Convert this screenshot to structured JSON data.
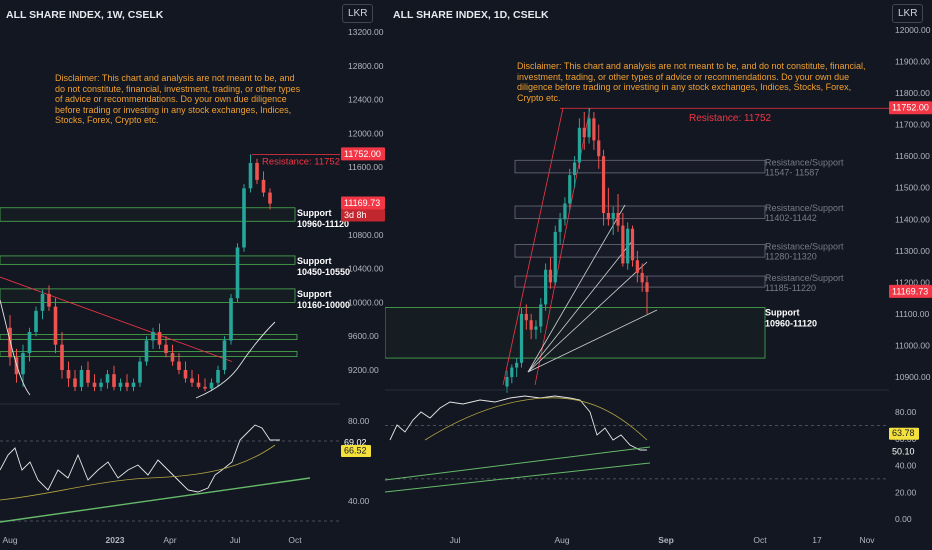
{
  "left": {
    "title": "ALL SHARE INDEX, 1W, CSELK",
    "currency": "LKR",
    "disclaimer": "Disclaimer: This chart and analysis are not meant to be, and do not constitute, financial, investment, trading, or other types of advice or recommendations. Do your own due diligence before trading or investing in any stock exchanges, Indices, Stocks, Forex, Crypto etc.",
    "resistance_label": "Resistance: 11752",
    "support_zones": [
      {
        "line1": "Support",
        "line2": "10960-11120",
        "low": 10960,
        "high": 11120
      },
      {
        "line1": "Support",
        "line2": "10450-10550",
        "low": 10450,
        "high": 10550
      },
      {
        "line1": "Support",
        "line2": "10160-10000",
        "low": 10000,
        "high": 10160
      }
    ],
    "last_price": "11169.73",
    "countdown": "3d 8h",
    "resistance_price": "11752.00",
    "rsi_values": [
      "69.02",
      "66.52"
    ],
    "colors": {
      "up": "#26a69a",
      "down": "#ef5350",
      "zone": "#4caf50",
      "resistance": "#f23645",
      "rsi": "#e6e6e6",
      "rsi_ma": "#b5a642",
      "trend": "#66bb6a"
    }
  },
  "right": {
    "title": "ALL SHARE INDEX, 1D, CSELK",
    "currency": "LKR",
    "disclaimer": "Disclaimer: This chart and analysis are not meant to be, and do not constitute, financial, investment, trading, or other types of advice or recommendations. Do your own due diligence before trading or investing in any stock exchanges, Indices, Stocks, Forex, Crypto etc.",
    "resistance_label": "Resistance: 11752",
    "zones": [
      {
        "line1": "Resistance/Support",
        "line2": "11547- 11587",
        "low": 11547,
        "high": 11587
      },
      {
        "line1": "Resistance/Support",
        "line2": "11402-11442",
        "low": 11402,
        "high": 11442
      },
      {
        "line1": "Resistance/Support",
        "line2": "11280-11320",
        "low": 11280,
        "high": 11320
      },
      {
        "line1": "Resistance/Support",
        "line2": "11185-11220",
        "low": 11185,
        "high": 11220
      }
    ],
    "support_zone": {
      "line1": "Support",
      "line2": "10960-11120",
      "low": 10960,
      "high": 11120
    },
    "resistance_price": "11752.00",
    "last_price": "11169.73",
    "rsi_values": [
      "63.78",
      "50.10"
    ]
  },
  "chart_data": [
    {
      "type": "candlestick",
      "title": "ALL SHARE INDEX, 1W, CSELK",
      "currency": "LKR",
      "ylim": [
        8950,
        13330
      ],
      "y_ticks": [
        "13200.00",
        "12800.00",
        "12400.00",
        "12000.00",
        "11600.00",
        "10800.00",
        "10400.00",
        "10000.00",
        "9600.00",
        "9200.00"
      ],
      "x_ticks": [
        "Aug",
        "2023",
        "Apr",
        "Jul",
        "Oct"
      ],
      "candles": [
        {
          "o": 9700,
          "h": 9850,
          "l": 9250,
          "c": 9350
        },
        {
          "o": 9350,
          "h": 9450,
          "l": 9050,
          "c": 9150
        },
        {
          "o": 9150,
          "h": 9500,
          "l": 9000,
          "c": 9400
        },
        {
          "o": 9400,
          "h": 9700,
          "l": 9300,
          "c": 9650
        },
        {
          "o": 9650,
          "h": 9950,
          "l": 9600,
          "c": 9900
        },
        {
          "o": 9900,
          "h": 10150,
          "l": 9800,
          "c": 10100
        },
        {
          "o": 10100,
          "h": 10200,
          "l": 9900,
          "c": 9950
        },
        {
          "o": 9950,
          "h": 10050,
          "l": 9400,
          "c": 9500
        },
        {
          "o": 9500,
          "h": 9650,
          "l": 9100,
          "c": 9200
        },
        {
          "o": 9200,
          "h": 9300,
          "l": 9000,
          "c": 9100
        },
        {
          "o": 9100,
          "h": 9200,
          "l": 8950,
          "c": 9000
        },
        {
          "o": 9000,
          "h": 9250,
          "l": 8950,
          "c": 9200
        },
        {
          "o": 9200,
          "h": 9300,
          "l": 9000,
          "c": 9050
        },
        {
          "o": 9050,
          "h": 9150,
          "l": 8950,
          "c": 9000
        },
        {
          "o": 9000,
          "h": 9100,
          "l": 8950,
          "c": 9050
        },
        {
          "o": 9050,
          "h": 9200,
          "l": 8980,
          "c": 9150
        },
        {
          "o": 9150,
          "h": 9250,
          "l": 8960,
          "c": 9000
        },
        {
          "o": 9000,
          "h": 9100,
          "l": 8950,
          "c": 9050
        },
        {
          "o": 9050,
          "h": 9150,
          "l": 8950,
          "c": 9000
        },
        {
          "o": 9000,
          "h": 9100,
          "l": 8950,
          "c": 9050
        },
        {
          "o": 9050,
          "h": 9350,
          "l": 9000,
          "c": 9300
        },
        {
          "o": 9300,
          "h": 9600,
          "l": 9250,
          "c": 9550
        },
        {
          "o": 9550,
          "h": 9700,
          "l": 9450,
          "c": 9650
        },
        {
          "o": 9650,
          "h": 9750,
          "l": 9450,
          "c": 9500
        },
        {
          "o": 9500,
          "h": 9600,
          "l": 9350,
          "c": 9400
        },
        {
          "o": 9400,
          "h": 9500,
          "l": 9250,
          "c": 9300
        },
        {
          "o": 9300,
          "h": 9400,
          "l": 9150,
          "c": 9200
        },
        {
          "o": 9200,
          "h": 9300,
          "l": 9050,
          "c": 9100
        },
        {
          "o": 9100,
          "h": 9200,
          "l": 9000,
          "c": 9050
        },
        {
          "o": 9050,
          "h": 9150,
          "l": 8980,
          "c": 9000
        },
        {
          "o": 9000,
          "h": 9100,
          "l": 8950,
          "c": 8980
        },
        {
          "o": 8980,
          "h": 9100,
          "l": 8950,
          "c": 9050
        },
        {
          "o": 9050,
          "h": 9250,
          "l": 9000,
          "c": 9200
        },
        {
          "o": 9200,
          "h": 9600,
          "l": 9150,
          "c": 9550
        },
        {
          "o": 9550,
          "h": 10100,
          "l": 9500,
          "c": 10050
        },
        {
          "o": 10050,
          "h": 10700,
          "l": 10000,
          "c": 10650
        },
        {
          "o": 10650,
          "h": 11400,
          "l": 10600,
          "c": 11350
        },
        {
          "o": 11350,
          "h": 11752,
          "l": 11300,
          "c": 11650
        },
        {
          "o": 11650,
          "h": 11700,
          "l": 11400,
          "c": 11450
        },
        {
          "o": 11450,
          "h": 11550,
          "l": 11250,
          "c": 11300
        },
        {
          "o": 11300,
          "h": 11350,
          "l": 11100,
          "c": 11169.73
        }
      ],
      "annotations": [
        "Resistance: 11752",
        "Support 10960-11120",
        "Support 10450-10550",
        "Support 10160-10000"
      ],
      "rsi": {
        "ylim": [
          30,
          90
        ],
        "y_ticks": [
          "80.00",
          "40.00"
        ],
        "values": [
          69.02,
          66.52
        ]
      }
    },
    {
      "type": "candlestick",
      "title": "ALL SHARE INDEX, 1D, CSELK",
      "currency": "LKR",
      "ylim": [
        10840,
        12090
      ],
      "y_ticks": [
        "12000.00",
        "11900.00",
        "11800.00",
        "11700.00",
        "11600.00",
        "11500.00",
        "11400.00",
        "11300.00",
        "11200.00",
        "11100.00",
        "11000.00",
        "10900.00"
      ],
      "x_ticks": [
        "Jul",
        "Aug",
        "Sep",
        "Oct",
        "17",
        "Nov"
      ],
      "candles": [
        {
          "o": 10870,
          "h": 10920,
          "l": 10850,
          "c": 10900
        },
        {
          "o": 10900,
          "h": 10940,
          "l": 10880,
          "c": 10930
        },
        {
          "o": 10930,
          "h": 10960,
          "l": 10900,
          "c": 10945
        },
        {
          "o": 10945,
          "h": 11120,
          "l": 10930,
          "c": 11100
        },
        {
          "o": 11100,
          "h": 11130,
          "l": 11050,
          "c": 11080
        },
        {
          "o": 11080,
          "h": 11100,
          "l": 11020,
          "c": 11050
        },
        {
          "o": 11050,
          "h": 11080,
          "l": 11020,
          "c": 11060
        },
        {
          "o": 11060,
          "h": 11150,
          "l": 11040,
          "c": 11130
        },
        {
          "o": 11130,
          "h": 11260,
          "l": 11110,
          "c": 11240
        },
        {
          "o": 11240,
          "h": 11280,
          "l": 11180,
          "c": 11200
        },
        {
          "o": 11200,
          "h": 11380,
          "l": 11190,
          "c": 11360
        },
        {
          "o": 11360,
          "h": 11420,
          "l": 11320,
          "c": 11400
        },
        {
          "o": 11400,
          "h": 11470,
          "l": 11380,
          "c": 11450
        },
        {
          "o": 11450,
          "h": 11560,
          "l": 11430,
          "c": 11540
        },
        {
          "o": 11540,
          "h": 11600,
          "l": 11500,
          "c": 11580
        },
        {
          "o": 11580,
          "h": 11720,
          "l": 11560,
          "c": 11690
        },
        {
          "o": 11690,
          "h": 11740,
          "l": 11620,
          "c": 11660
        },
        {
          "o": 11660,
          "h": 11752,
          "l": 11640,
          "c": 11720
        },
        {
          "o": 11720,
          "h": 11740,
          "l": 11620,
          "c": 11650
        },
        {
          "o": 11650,
          "h": 11700,
          "l": 11560,
          "c": 11600
        },
        {
          "o": 11600,
          "h": 11620,
          "l": 11380,
          "c": 11420
        },
        {
          "o": 11420,
          "h": 11500,
          "l": 11380,
          "c": 11400
        },
        {
          "o": 11400,
          "h": 11440,
          "l": 11350,
          "c": 11420
        },
        {
          "o": 11420,
          "h": 11480,
          "l": 11360,
          "c": 11380
        },
        {
          "o": 11380,
          "h": 11420,
          "l": 11250,
          "c": 11260
        },
        {
          "o": 11260,
          "h": 11390,
          "l": 11240,
          "c": 11370
        },
        {
          "o": 11370,
          "h": 11380,
          "l": 11250,
          "c": 11270
        },
        {
          "o": 11270,
          "h": 11300,
          "l": 11200,
          "c": 11230
        },
        {
          "o": 11230,
          "h": 11260,
          "l": 11170,
          "c": 11200
        },
        {
          "o": 11200,
          "h": 11220,
          "l": 11100,
          "c": 11169.73
        }
      ],
      "annotations": [
        "Resistance: 11752",
        "Resistance/Support 11547- 11587",
        "Resistance/Support 11402-11442",
        "Resistance/Support 11280-11320",
        "Resistance/Support 11185-11220",
        "Support 10960-11120"
      ],
      "rsi": {
        "ylim": [
          -5,
          95
        ],
        "y_ticks": [
          "80.00",
          "60.00",
          "40.00",
          "20.00",
          "0.00"
        ],
        "values": [
          63.78,
          50.1
        ]
      }
    }
  ]
}
